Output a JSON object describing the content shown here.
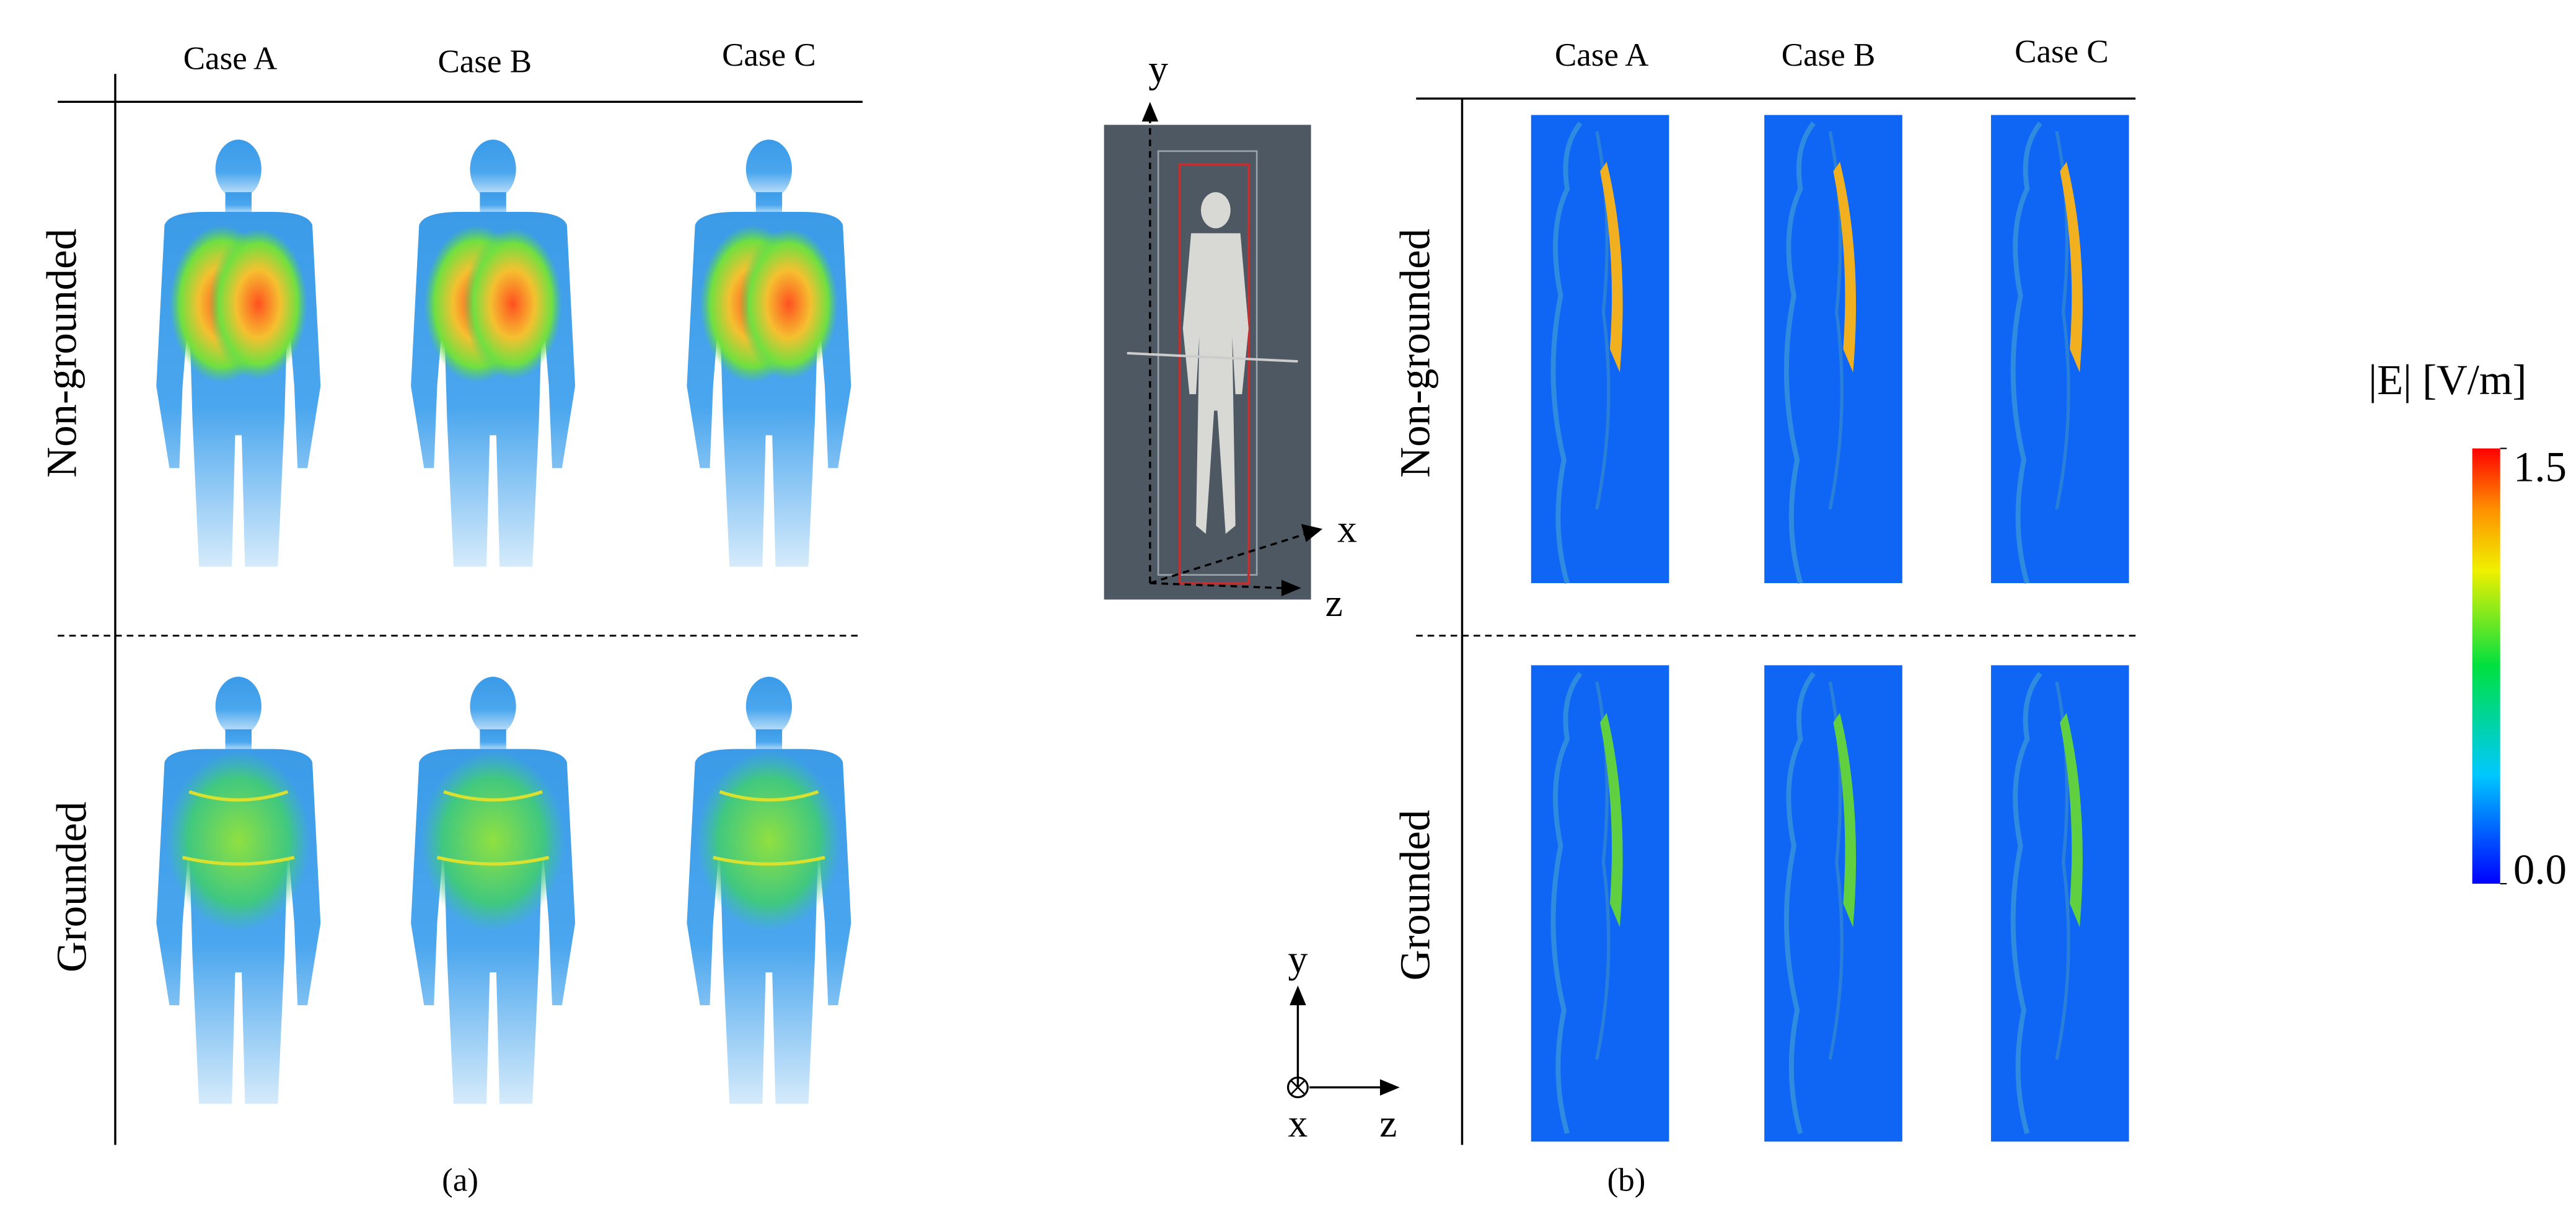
{
  "panel_a": {
    "columns": [
      "Case A",
      "Case B",
      "Case C"
    ],
    "rows": [
      "Non-grounded",
      "Grounded"
    ],
    "caption": "(a)"
  },
  "panel_b": {
    "columns": [
      "Case A",
      "Case B",
      "Case C"
    ],
    "rows": [
      "Non-grounded",
      "Grounded"
    ],
    "model_axes": [
      "y",
      "x",
      "z"
    ],
    "view_axes": [
      "y",
      "x",
      "z"
    ],
    "caption": "(b)"
  },
  "colorbar": {
    "title": "|E| [V/m]",
    "ticks": [
      {
        "value": 0,
        "label": "0.0"
      },
      1.5
    ]
  }
}
